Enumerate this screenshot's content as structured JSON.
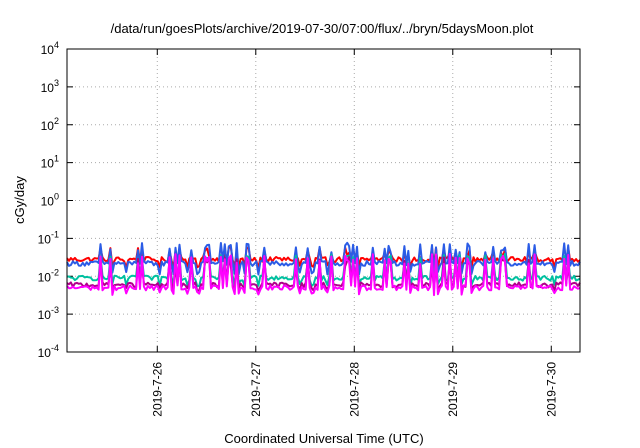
{
  "chart_data": {
    "type": "line",
    "title": "/data/run/goesPlots/archive/2019-07-30/07:00/flux/../bryn/5daysMoon.plot",
    "xlabel": "Coordinated Universal Time (UTC)",
    "ylabel": "cGy/day",
    "yscale": "log",
    "ylim": [
      0.0001,
      10000
    ],
    "xlim": [
      "2019-07-25 02:00",
      "2019-07-30 07:00"
    ],
    "grid": true,
    "x_ticks": [
      "2019-7-26",
      "2019-7-27",
      "2019-7-28",
      "2019-7-29",
      "2019-7-30"
    ],
    "y_ticks": [
      {
        "base": "10",
        "exp": "-4"
      },
      {
        "base": "10",
        "exp": "-3"
      },
      {
        "base": "10",
        "exp": "-2"
      },
      {
        "base": "10",
        "exp": "-1"
      },
      {
        "base": "10",
        "exp": "0"
      },
      {
        "base": "10",
        "exp": "1"
      },
      {
        "base": "10",
        "exp": "2"
      },
      {
        "base": "10",
        "exp": "3"
      },
      {
        "base": "10",
        "exp": "4"
      }
    ],
    "series": [
      {
        "color": "#ff0000",
        "baseline": 0.028,
        "spike": 0.045,
        "low": 0.018
      },
      {
        "color": "#2b5ce6",
        "baseline": 0.022,
        "spike": 0.06,
        "low": 0.012
      },
      {
        "color": "#00c0a0",
        "baseline": 0.009,
        "spike": 0.03,
        "low": 0.006
      },
      {
        "color": "#b0008a",
        "baseline": 0.006,
        "spike": 0.025,
        "low": 0.0045
      },
      {
        "color": "#ff00ff",
        "baseline": 0.005,
        "spike": 0.03,
        "low": 0.0035
      }
    ]
  }
}
